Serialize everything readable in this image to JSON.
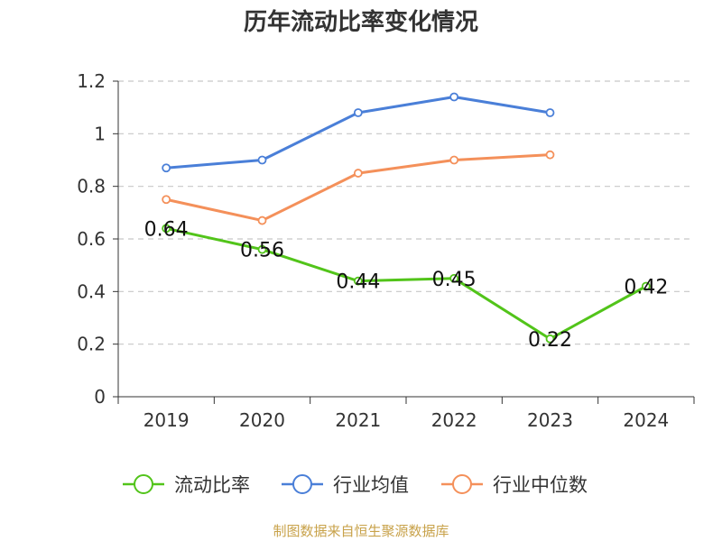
{
  "chart_data": {
    "type": "line",
    "title": "历年流动比率变化情况",
    "categories": [
      "2019",
      "2020",
      "2021",
      "2022",
      "2023",
      "2024"
    ],
    "y_ticks": [
      "0",
      "0.2",
      "0.4",
      "0.6",
      "0.8",
      "1",
      "1.2"
    ],
    "ylim": [
      0,
      1.2
    ],
    "grid": true,
    "legend_position": "bottom",
    "series": [
      {
        "name": "流动比率",
        "color": "#52c41a",
        "values": [
          0.64,
          0.56,
          0.44,
          0.45,
          0.22,
          0.42
        ],
        "labels": [
          "0.64",
          "0.56",
          "0.44",
          "0.45",
          "0.22",
          "0.42"
        ]
      },
      {
        "name": "行业均值",
        "color": "#4a7fd8",
        "values": [
          0.87,
          0.9,
          1.08,
          1.14,
          1.08,
          null
        ]
      },
      {
        "name": "行业中位数",
        "color": "#f4905a",
        "values": [
          0.75,
          0.67,
          0.85,
          0.9,
          0.92,
          null
        ]
      }
    ],
    "source": "制图数据来自恒生聚源数据库"
  }
}
